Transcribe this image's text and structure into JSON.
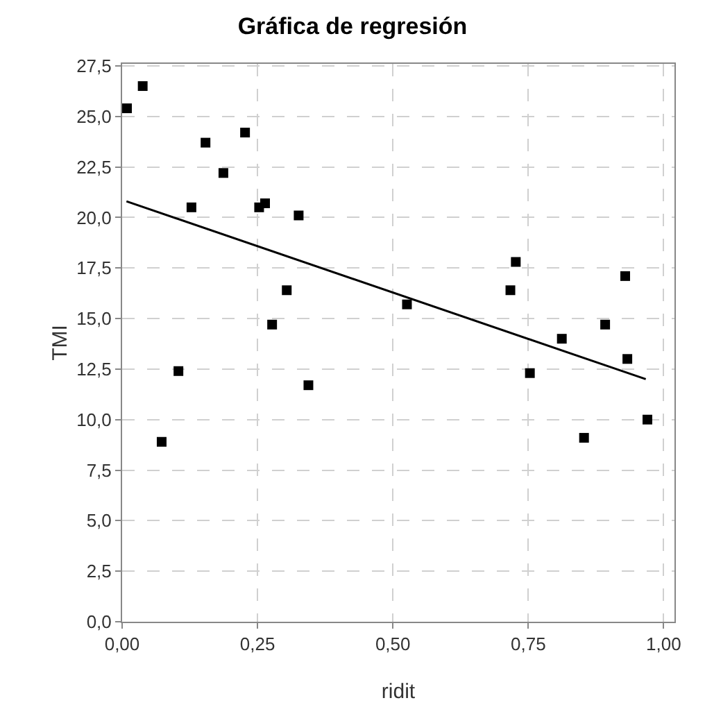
{
  "chart_data": {
    "type": "scatter",
    "title": "Gráfica de regresión",
    "xlabel": "ridit",
    "ylabel": "TMI",
    "marker": "square",
    "grid": true,
    "xlim": [
      0,
      1.02
    ],
    "ylim": [
      0,
      27.6
    ],
    "xticks": [
      {
        "value": 0,
        "label": "0,00"
      },
      {
        "value": 0.25,
        "label": "0,25"
      },
      {
        "value": 0.5,
        "label": "0,50"
      },
      {
        "value": 0.75,
        "label": "0,75"
      },
      {
        "value": 1,
        "label": "1,00"
      }
    ],
    "yticks": [
      {
        "value": 0,
        "label": "0,0"
      },
      {
        "value": 2.5,
        "label": "2,5"
      },
      {
        "value": 5,
        "label": "5,0"
      },
      {
        "value": 7.5,
        "label": "7,5"
      },
      {
        "value": 10,
        "label": "10,0"
      },
      {
        "value": 12.5,
        "label": "12,5"
      },
      {
        "value": 15,
        "label": "15,0"
      },
      {
        "value": 17.5,
        "label": "17,5"
      },
      {
        "value": 20,
        "label": "20,0"
      },
      {
        "value": 22.5,
        "label": "22,5"
      },
      {
        "value": 25,
        "label": "25,0"
      },
      {
        "value": 27.5,
        "label": "27,5"
      }
    ],
    "series": [
      {
        "color": "#000000",
        "x": [
          0.009,
          0.038,
          0.073,
          0.104,
          0.128,
          0.154,
          0.187,
          0.227,
          0.253,
          0.264,
          0.277,
          0.304,
          0.326,
          0.344,
          0.526,
          0.717,
          0.727,
          0.753,
          0.812,
          0.853,
          0.892,
          0.929,
          0.933,
          0.97
        ],
        "values": [
          25.4,
          26.5,
          8.9,
          12.4,
          20.5,
          23.7,
          22.2,
          24.2,
          20.5,
          20.7,
          14.7,
          16.4,
          20.1,
          11.7,
          15.7,
          16.4,
          17.8,
          12.3,
          14.0,
          9.1,
          14.7,
          17.1,
          13.0,
          10.0
        ]
      },
      {
        "type": "line",
        "color": "#000000",
        "marker": "none",
        "x": [
          0.008,
          0.967
        ],
        "values": [
          20.8,
          12.0
        ]
      }
    ]
  }
}
